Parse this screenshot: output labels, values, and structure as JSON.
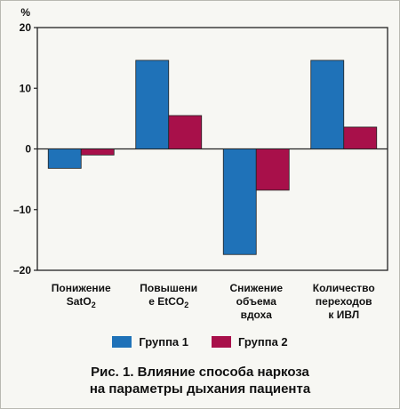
{
  "chart_data": {
    "type": "bar",
    "unit_label": "%",
    "ylim": [
      -20,
      20
    ],
    "yticks": [
      20,
      10,
      0,
      -10,
      -20
    ],
    "ytick_labels": [
      "20",
      "10",
      "0",
      "–10",
      "–20"
    ],
    "categories": [
      {
        "lines": [
          [
            "Понижение"
          ],
          [
            "SatO",
            {
              "sub": "2"
            }
          ]
        ]
      },
      {
        "lines": [
          [
            "Повышени"
          ],
          [
            "е EtCO",
            {
              "sub": "2"
            }
          ]
        ]
      },
      {
        "lines": [
          [
            "Снижение"
          ],
          [
            "объема"
          ],
          [
            "вдоха"
          ]
        ]
      },
      {
        "lines": [
          [
            "Количество"
          ],
          [
            "переходов"
          ],
          [
            "к ИВЛ"
          ]
        ]
      }
    ],
    "series": [
      {
        "name": "Группа 1",
        "color": "#1f72b8",
        "values": [
          -3.2,
          14.6,
          -17.4,
          14.6
        ]
      },
      {
        "name": "Группа 2",
        "color": "#a8104a",
        "values": [
          -1.0,
          5.5,
          -6.8,
          3.6
        ]
      }
    ],
    "grid": false,
    "legend_position": "bottom"
  },
  "caption": {
    "line1": "Рис. 1. Влияние способа наркоза",
    "line2": "на параметры дыхания пациента"
  }
}
